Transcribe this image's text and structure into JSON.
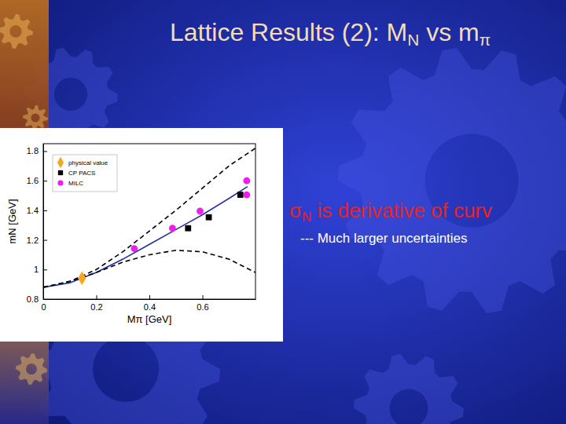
{
  "slide": {
    "title": [
      {
        "text": "Lattice Results (2): M"
      },
      {
        "text": "N",
        "sub": true
      },
      {
        "text": " vs m"
      },
      {
        "text": "π",
        "sub": true
      }
    ],
    "points": [
      [
        {
          "text": "σ"
        },
        {
          "text": "N",
          "sub": true
        },
        {
          "text": " is derivative of curv"
        }
      ],
      [
        {
          "text": "--- Much  larger uncertainties"
        }
      ]
    ]
  },
  "chart_data": {
    "type": "scatter",
    "xlabel": "Mπ [GeV]",
    "ylabel": "mN [GeV]",
    "xlim": [
      0,
      0.8
    ],
    "ylim": [
      0.8,
      1.85
    ],
    "xticks": [
      0,
      0.2,
      0.4,
      0.6
    ],
    "yticks": [
      0.8,
      1,
      1.2,
      1.4,
      1.6,
      1.8
    ],
    "legend": "upper left",
    "series": [
      {
        "name": "physical value",
        "type": "scatter",
        "marker": "diamond",
        "color": "#f5a623",
        "x": [
          0.146
        ],
        "values": [
          0.942
        ]
      },
      {
        "name": "CP PACS",
        "type": "scatter",
        "marker": "square",
        "color": "#000000",
        "x": [
          0.546,
          0.624,
          0.743
        ],
        "values": [
          1.279,
          1.353,
          1.505
        ]
      },
      {
        "name": "MILC",
        "type": "scatter",
        "marker": "circle",
        "color": "#ee1cee",
        "x": [
          0.343,
          0.487,
          0.591,
          0.767,
          0.767
        ],
        "values": [
          1.142,
          1.279,
          1.395,
          1.6,
          1.505
        ]
      },
      {
        "type": "line",
        "line_style": "solid",
        "color": "#1f2f9f",
        "x": [
          0,
          0.1,
          0.2,
          0.3,
          0.4,
          0.5,
          0.6,
          0.7,
          0.77
        ],
        "values": [
          0.88,
          0.91,
          0.98,
          1.07,
          1.17,
          1.27,
          1.37,
          1.48,
          1.56
        ]
      },
      {
        "type": "line",
        "line_style": "dashed",
        "color": "#000000",
        "x": [
          0,
          0.1,
          0.2,
          0.3,
          0.4,
          0.5,
          0.6,
          0.7,
          0.8
        ],
        "values": [
          0.88,
          0.92,
          1.0,
          1.12,
          1.26,
          1.4,
          1.55,
          1.7,
          1.82
        ]
      },
      {
        "type": "line",
        "line_style": "dashed",
        "color": "#000000",
        "x": [
          0,
          0.1,
          0.2,
          0.3,
          0.4,
          0.5,
          0.6,
          0.7,
          0.8
        ],
        "values": [
          0.88,
          0.92,
          0.98,
          1.05,
          1.1,
          1.13,
          1.12,
          1.07,
          0.98
        ]
      }
    ]
  }
}
